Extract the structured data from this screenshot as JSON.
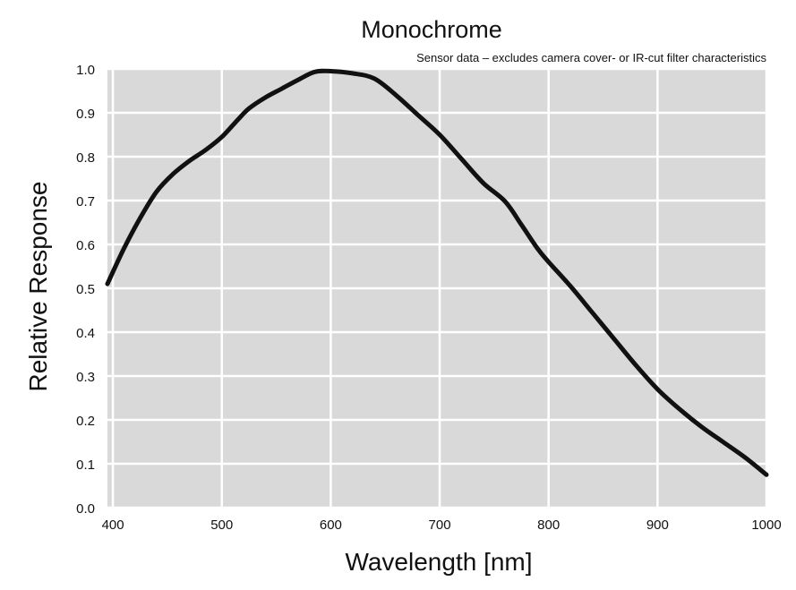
{
  "chart_data": {
    "type": "line",
    "title": "Monochrome",
    "subtitle": "Sensor data – excludes camera cover- or IR-cut filter characteristics",
    "xlabel": "Wavelength [nm]",
    "ylabel": "Relative Response",
    "xlim": [
      395,
      1000
    ],
    "ylim": [
      0,
      1.0
    ],
    "xticks": [
      400,
      500,
      600,
      700,
      800,
      900,
      1000
    ],
    "yticks": [
      0.0,
      0.1,
      0.2,
      0.3,
      0.4,
      0.5,
      0.6,
      0.7,
      0.8,
      0.9,
      1.0
    ],
    "ytick_labels": [
      "0.0",
      "0.1",
      "0.2",
      "0.3",
      "0.4",
      "0.5",
      "0.6",
      "0.7",
      "0.8",
      "0.9",
      "1.0"
    ],
    "grid": true,
    "legend": "none",
    "colors": {
      "plot_bg": "#d9d9da",
      "grid": "#ffffff",
      "line": "#111111"
    },
    "series": [
      {
        "x": [
          395,
          410,
          425,
          440,
          455,
          470,
          485,
          500,
          515,
          525,
          540,
          555,
          570,
          585,
          600,
          620,
          640,
          660,
          680,
          700,
          720,
          740,
          760,
          775,
          790,
          800,
          820,
          840,
          860,
          880,
          900,
          920,
          940,
          960,
          980,
          1000
        ],
        "y": [
          0.51,
          0.59,
          0.66,
          0.72,
          0.76,
          0.79,
          0.815,
          0.845,
          0.885,
          0.91,
          0.935,
          0.955,
          0.975,
          0.993,
          0.995,
          0.99,
          0.978,
          0.94,
          0.895,
          0.85,
          0.795,
          0.74,
          0.698,
          0.645,
          0.59,
          0.56,
          0.505,
          0.445,
          0.385,
          0.325,
          0.27,
          0.225,
          0.185,
          0.15,
          0.115,
          0.075
        ]
      }
    ]
  }
}
